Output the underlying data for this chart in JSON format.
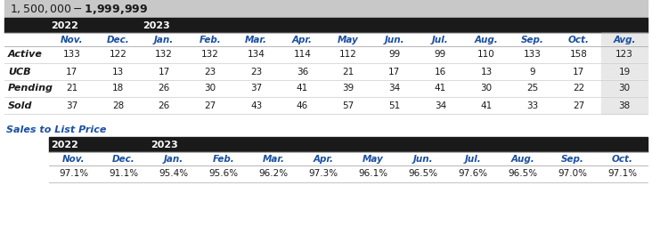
{
  "title": "$1,500,000 - $1,999,999",
  "title_bg": "#c8c8c8",
  "header_bg": "#1a1a1a",
  "col_header_text_color": "#1a4fa0",
  "row_label_color": "#1a1a1a",
  "data_color": "#1a1a1a",
  "avg_bg": "#e8e8e8",
  "year_labels": [
    "2022",
    "2023"
  ],
  "month_cols": [
    "Nov.",
    "Dec.",
    "Jan.",
    "Feb.",
    "Mar.",
    "Apr.",
    "May",
    "Jun.",
    "Jul.",
    "Aug.",
    "Sep.",
    "Oct.",
    "Avg."
  ],
  "row_labels": [
    "Active",
    "UCB",
    "Pending",
    "Sold"
  ],
  "table1_data": [
    [
      133,
      122,
      132,
      132,
      134,
      114,
      112,
      99,
      99,
      110,
      133,
      158,
      123
    ],
    [
      17,
      13,
      17,
      23,
      23,
      36,
      21,
      17,
      16,
      13,
      9,
      17,
      19
    ],
    [
      21,
      18,
      26,
      30,
      37,
      41,
      39,
      34,
      41,
      30,
      25,
      22,
      30
    ],
    [
      37,
      28,
      26,
      27,
      43,
      46,
      57,
      51,
      34,
      41,
      33,
      27,
      38
    ]
  ],
  "sales_label": "Sales to List Price",
  "sales_month_cols": [
    "Nov.",
    "Dec.",
    "Jan.",
    "Feb.",
    "Mar.",
    "Apr.",
    "May",
    "Jun.",
    "Jul.",
    "Aug.",
    "Sep.",
    "Oct."
  ],
  "sales_data": [
    "97.1%",
    "91.1%",
    "95.4%",
    "95.6%",
    "96.2%",
    "97.3%",
    "96.1%",
    "96.5%",
    "97.6%",
    "96.5%",
    "97.0%",
    "97.1%"
  ]
}
